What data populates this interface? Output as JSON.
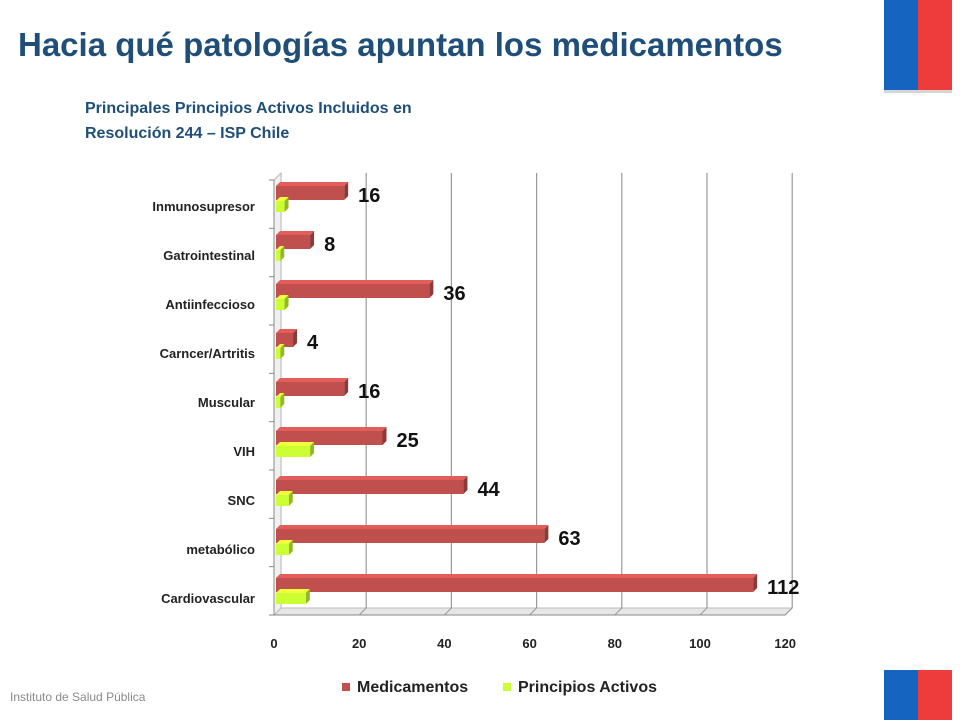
{
  "page": {
    "title": "Hacia qué patologías apuntan los medicamentos",
    "subtitle_line1": "Principales Principios Activos Incluidos en",
    "subtitle_line2": "Resolución 244 – ISP Chile",
    "footer": "Instituto de Salud Pública"
  },
  "colors": {
    "title": "#1F4E79",
    "medicamentos": "#C0504D",
    "principios": "#CCFF33",
    "flag_blue": "#1565C0",
    "flag_red": "#EE3B3B"
  },
  "chart_data": {
    "type": "bar",
    "orientation": "horizontal",
    "title": "",
    "xlabel": "",
    "ylabel": "",
    "xlim": [
      0,
      120
    ],
    "x_ticks": [
      0,
      20,
      40,
      60,
      80,
      100,
      120
    ],
    "grid": true,
    "legend_position": "bottom",
    "categories": [
      "Inmunosupresor",
      "Gatrointestinal",
      "Antiinfeccioso",
      "Carncer/Artritis",
      "Muscular",
      "VIH",
      "SNC",
      "metabólico",
      "Cardiovascular"
    ],
    "series": [
      {
        "name": "Medicamentos",
        "values": [
          16,
          8,
          36,
          4,
          16,
          25,
          44,
          63,
          112
        ]
      },
      {
        "name": "Principios Activos",
        "values": [
          2,
          1,
          2,
          1,
          1,
          8,
          3,
          3,
          7
        ]
      }
    ],
    "data_labels": [
      16,
      8,
      36,
      4,
      16,
      25,
      44,
      63,
      112
    ]
  }
}
